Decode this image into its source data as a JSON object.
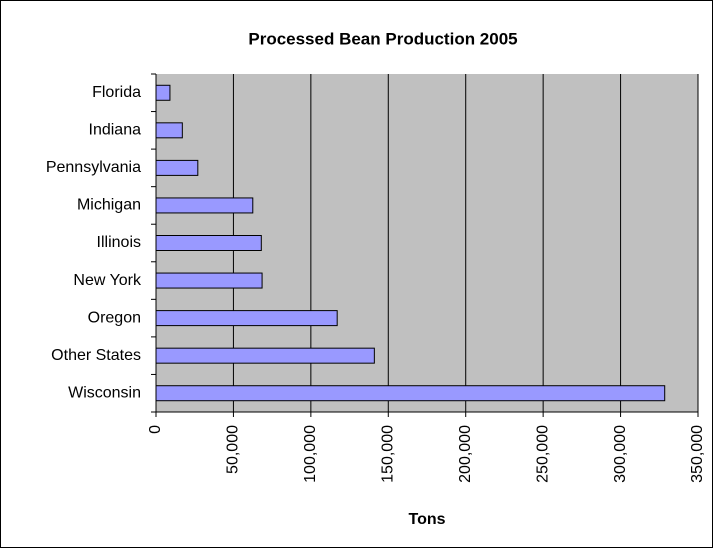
{
  "chart_data": {
    "type": "bar",
    "orientation": "horizontal",
    "title": "Processed Bean Production 2005",
    "x_label": "Tons",
    "categories": [
      "Florida",
      "Indiana",
      "Pennsylvania",
      "Michigan",
      "Illinois",
      "New York",
      "Oregon",
      "Other States",
      "Wisconsin"
    ],
    "values": [
      9000,
      17000,
      27000,
      62500,
      68000,
      68500,
      117000,
      141000,
      328500
    ],
    "color": "#9999ff",
    "xlim": [
      0,
      350000
    ],
    "xticks": [
      0,
      {
        "value": 50000,
        "label": "50,000"
      },
      {
        "value": 100000,
        "label": "100,000"
      },
      {
        "value": 150000,
        "label": "150,000"
      },
      {
        "value": 200000,
        "label": "200,000"
      },
      {
        "value": 250000,
        "label": "250,000"
      },
      {
        "value": 300000,
        "label": "300,000"
      },
      {
        "value": 350000,
        "label": "350,000"
      }
    ],
    "grid": true
  }
}
